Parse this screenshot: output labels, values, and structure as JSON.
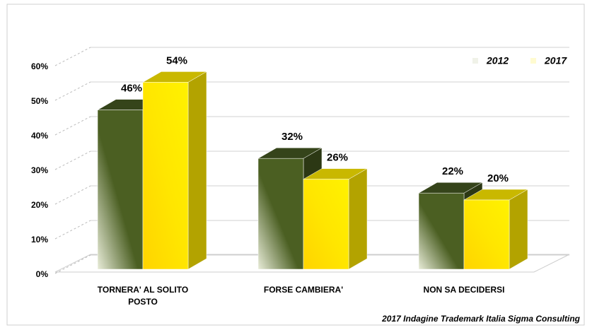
{
  "chart_data": {
    "type": "bar3d",
    "categories": [
      [
        "TORNERA' AL SOLITO",
        "POSTO"
      ],
      [
        "FORSE CAMBIERA'"
      ],
      [
        "NON SA DECIDERSI"
      ]
    ],
    "series": [
      {
        "name": "2012",
        "color": "#4b5f22",
        "values": [
          46,
          32,
          22
        ],
        "value_labels": [
          "46%",
          "32%",
          "22%"
        ]
      },
      {
        "name": "2017",
        "color": "#ffe000",
        "values": [
          54,
          26,
          20
        ],
        "value_labels": [
          "54%",
          "26%",
          "20%"
        ]
      }
    ],
    "ylim": [
      0,
      60
    ],
    "yticks": [
      {
        "value": 0,
        "label": "0%"
      },
      {
        "value": 10,
        "label": "10%"
      },
      {
        "value": 20,
        "label": "20%"
      },
      {
        "value": 30,
        "label": "30%"
      },
      {
        "value": 40,
        "label": "40%"
      },
      {
        "value": 50,
        "label": "50%"
      },
      {
        "value": 60,
        "label": "60%"
      }
    ],
    "grid": true,
    "legend": "top-right",
    "source": "2017 Indagine Trademark Italia Sigma Consulting"
  }
}
